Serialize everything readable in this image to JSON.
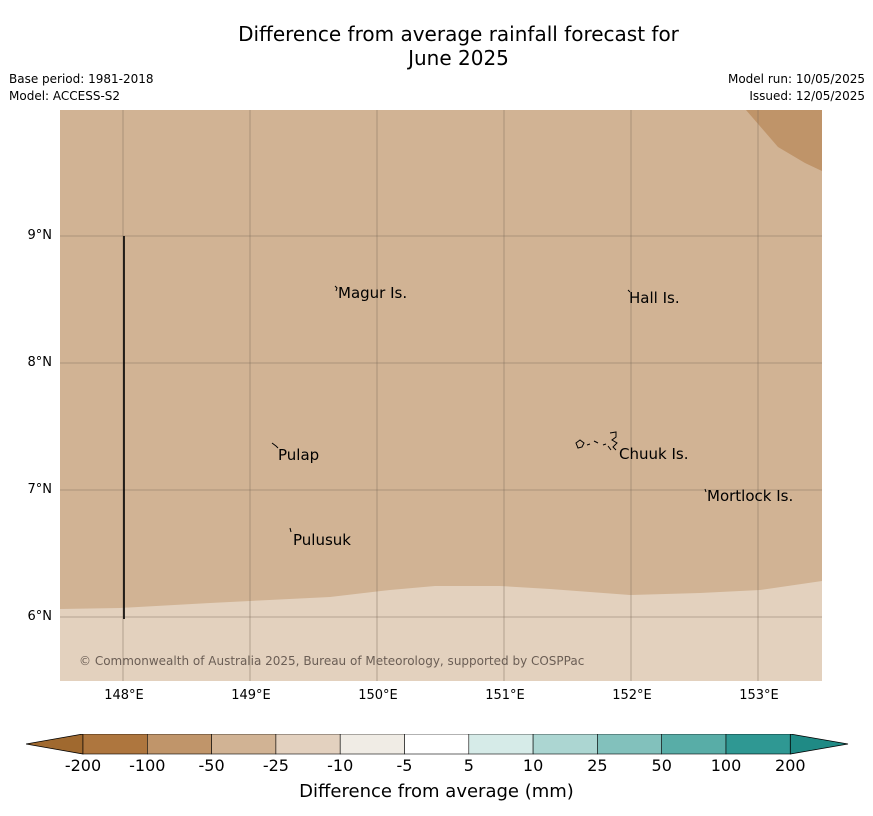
{
  "title": {
    "line1": "Difference from average rainfall forecast for",
    "line2": "June 2025"
  },
  "meta": {
    "base_period": "Base period: 1981-2018",
    "model": "Model: ACCESS-S2",
    "model_run": "Model run: 10/05/2025",
    "issued": "Issued: 12/05/2025"
  },
  "map": {
    "lat_labels": [
      "9°N",
      "8°N",
      "7°N",
      "6°N"
    ],
    "lon_labels": [
      "148°E",
      "149°E",
      "150°E",
      "151°E",
      "152°E",
      "153°E"
    ],
    "places": {
      "magur": "Magur Is.",
      "hall": "Hall Is.",
      "pulap": "Pulap",
      "chuuk": "Chuuk Is.",
      "mortlock": "Mortlock Is.",
      "pulusuk": "Pulusuk"
    },
    "copyright": "© Commonwealth of Australia 2025, Bureau of Meteorology, supported by COSPPac",
    "colors": {
      "c_neg50": "#d1b394",
      "c_neg25": "#e3d1be",
      "c_neg100": "#bf9469"
    }
  },
  "colorbar": {
    "ticks": [
      "-200",
      "-100",
      "-50",
      "-25",
      "-10",
      "-5",
      "5",
      "10",
      "25",
      "50",
      "100",
      "200"
    ],
    "colors": [
      "#ae763e",
      "#c0956a",
      "#d1b394",
      "#e3d1bf",
      "#f0ece5",
      "#ffffff",
      "#d6ebe8",
      "#acd6d2",
      "#82c1bc",
      "#58ada7",
      "#2f9893"
    ],
    "extend_low_color": "#a0692f",
    "extend_high_color": "#1f8a85",
    "label": "Difference from average (mm)"
  }
}
